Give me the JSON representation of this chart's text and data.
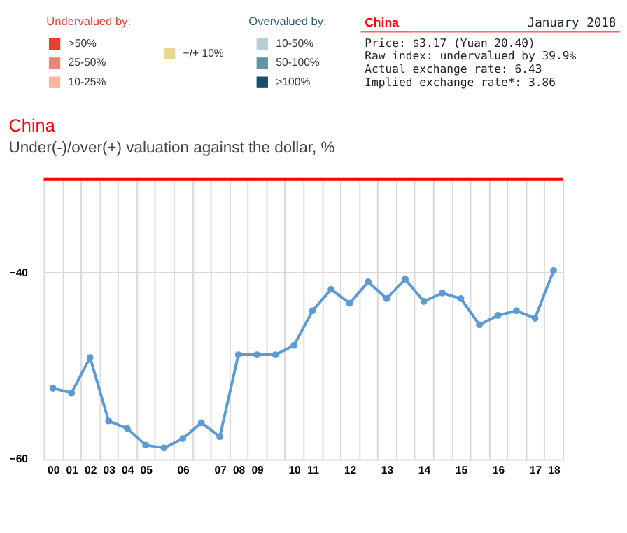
{
  "chart_data": [
    {
      "type": "other",
      "categories": [
        ">50%",
        "25-50%",
        "10-25%",
        "−/+ 10%",
        "10-50%",
        "50-100%",
        ">100%"
      ],
      "colors": [
        "#e8402f",
        "#e2897a",
        "#f9b59e",
        "#e7d994",
        "#b8ced6",
        "#5f97a5",
        "#174f6e"
      ],
      "annotations": [
        "Undervalued by:",
        "Overvalued by:"
      ]
    },
    {
      "type": "other",
      "title": "China",
      "subtitle": "January 2018",
      "annotations": [
        "Price: $3.17 (Yuan 20.40)",
        "Raw index: undervalued by 39.9%",
        "Actual exchange rate: 6.43",
        "Implied exchange rate*: 3.86"
      ]
    },
    {
      "type": "line",
      "title": "China",
      "subtitle": "Under(-)/over(+) valuation against the dollar, %",
      "categories": [
        "00",
        "01",
        "02",
        "03",
        "04",
        "05",
        null,
        "06",
        null,
        "07",
        "08",
        "09",
        null,
        "10",
        "11",
        null,
        "12",
        null,
        "13",
        null,
        "14",
        null,
        "15",
        null,
        "16",
        null,
        "17",
        "18"
      ],
      "series": [
        {
          "color": "#5b9bd5",
          "values": [
            -52.4,
            -52.9,
            -49.1,
            -55.9,
            -56.7,
            -58.5,
            -58.8,
            -57.8,
            -56.1,
            -57.6,
            -48.8,
            -48.8,
            -48.8,
            -47.8,
            -44.1,
            -41.8,
            -43.3,
            -41.0,
            -42.8,
            -40.7,
            -43.1,
            -42.2,
            -42.8,
            -45.6,
            -44.6,
            -44.1,
            -44.9,
            -39.8
          ]
        }
      ],
      "ylim": [
        -60,
        -30
      ],
      "yticks": [
        -60,
        -40
      ],
      "grid": true,
      "marker": "circle",
      "line_style": "solid",
      "ref_lines": [
        {
          "axis": "y",
          "value": -30,
          "color": "#ff0000"
        }
      ]
    }
  ]
}
